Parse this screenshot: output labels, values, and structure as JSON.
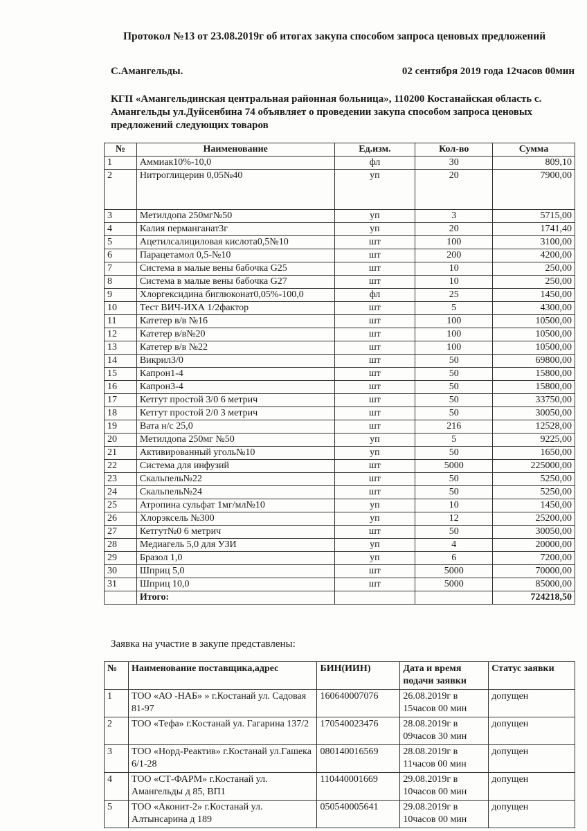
{
  "title": "Протокол №13 от 23.08.2019г об  итогах закупа способом запроса ценовых предложений",
  "city": "С.Амангельды.",
  "datetime": "02 сентября 2019 года 12часов 00мин",
  "intro": "КГП «Амангельдинская центральная районная больница», 110200 Костанайская область  с. Амангельды ул.Дуйсенбина 74 объявляет о проведении закупа способом запроса ценовых предложений следующих товаров",
  "goods": {
    "headers": [
      "№",
      "Наименование",
      "Ед.изм.",
      "Кол-во",
      "Сумма"
    ],
    "rows": [
      [
        "1",
        "Аммиак10%-10,0",
        "фл",
        "30",
        "809,10"
      ],
      [
        "2",
        "Нитроглицерин 0,05№40",
        "уп",
        "20",
        "7900,00"
      ],
      [
        "3",
        "Метилдопа 250мг№50",
        "уп",
        "3",
        "5715,00"
      ],
      [
        "4",
        "Калия перманганат3г",
        "уп",
        "20",
        "1741,40"
      ],
      [
        "5",
        "Ацетилсалициловая кислота0,5№10",
        "шт",
        "100",
        "3100,00"
      ],
      [
        "6",
        "Парацетамол 0,5-№10",
        "шт",
        "200",
        "4200,00"
      ],
      [
        "7",
        "Система в малые вены  бабочка G25",
        "шт",
        "10",
        "250,00"
      ],
      [
        "8",
        "Система в малые вены бабочка G27",
        "шт",
        "10",
        "250,00"
      ],
      [
        "9",
        "Хлоргексидина биглюконат0,05%-100,0",
        "фл",
        "25",
        "1450,00"
      ],
      [
        "10",
        "Тест ВИЧ-ИХА 1/2фактор",
        "шт",
        "5",
        "4300,00"
      ],
      [
        "11",
        "Катетер в/в №16",
        "шт",
        "100",
        "10500,00"
      ],
      [
        "12",
        "Катетер в/в№20",
        "шт",
        "100",
        "10500,00"
      ],
      [
        "13",
        "Катетер в/в №22",
        "шт",
        "100",
        "10500,00"
      ],
      [
        "14",
        "Викрил3/0",
        "шт",
        "50",
        "69800,00"
      ],
      [
        "15",
        "Капрон1-4",
        "шт",
        "50",
        "15800,00"
      ],
      [
        "16",
        "Капрон3-4",
        "шт",
        "50",
        "15800,00"
      ],
      [
        "17",
        "Кетгут простой 3/0 6 метрич",
        "шт",
        "50",
        "33750,00"
      ],
      [
        "18",
        "Кетгут простой 2/0 3 метрич",
        "шт",
        "50",
        "30050,00"
      ],
      [
        "19",
        "Вата н/с 25,0",
        "шт",
        "216",
        "12528,00"
      ],
      [
        "20",
        "Метилдопа 250мг №50",
        "уп",
        "5",
        "9225,00"
      ],
      [
        "21",
        "Активированный уголь№10",
        "уп",
        "50",
        "1650,00"
      ],
      [
        "22",
        "Система для инфузий",
        "шт",
        "5000",
        "225000,00"
      ],
      [
        "23",
        "Скальпель№22",
        "шт",
        "50",
        "5250,00"
      ],
      [
        "24",
        "Скальпель№24",
        "шт",
        "50",
        "5250,00"
      ],
      [
        "25",
        "Атропина сульфат 1мг/мл№10",
        "уп",
        "10",
        "1450,00"
      ],
      [
        "26",
        "Хлорэксель №300",
        "уп",
        "12",
        "25200,00"
      ],
      [
        "27",
        "Кетгут№0 6 метрич",
        "шт",
        "50",
        "30050,00"
      ],
      [
        "28",
        "Медиагель 5,0 для УЗИ",
        "уп",
        "4",
        "20000,00"
      ],
      [
        "29",
        "Бразол 1,0",
        "уп",
        "6",
        "7200,00"
      ],
      [
        "30",
        "Шприц 5,0",
        "шт",
        "5000",
        "70000,00"
      ],
      [
        "31",
        "Шприц 10,0",
        "шт",
        "5000",
        "85000,00"
      ]
    ],
    "total_label": "Итого:",
    "total_value": "724218,50"
  },
  "applications_label": "Заявка на участие в закупе представлены:",
  "applications": {
    "headers": [
      "№",
      "Наименование поставщика,адрес",
      "БИН(ИИН)",
      "Дата и время подачи заявки",
      "Статус заявки"
    ],
    "rows": [
      [
        "1",
        "ТОО «АО -НАБ» » г.Костанай ул. Садовая 81-97",
        "160640007076",
        "26.08.2019г в 15часов 00 мин",
        "допущен"
      ],
      [
        "2",
        "ТОО «Тефа» г.Костанай ул. Гагарина 137/2",
        "170540023476",
        "28.08.2019г в 09часов 30 мин",
        "допущен"
      ],
      [
        "3",
        "ТОО «Норд-Реактив» г.Костанай ул.Гашека 6/1-28",
        "080140016569",
        "28.08.2019г в 11часов 00 мин",
        "допущен"
      ],
      [
        "4",
        "ТОО «СТ-ФАРМ» г.Костанай ул. Амангельды д 85, ВП1",
        "110440001669",
        "29.08.2019г в 10часов 00 мин",
        "допущен"
      ],
      [
        "5",
        "ТОО «Аконит-2» г.Костанай ул. Алтынсарина д 189",
        "050540005641",
        "29.08.2019г в 10часов 00 мин",
        "допущен"
      ]
    ]
  }
}
